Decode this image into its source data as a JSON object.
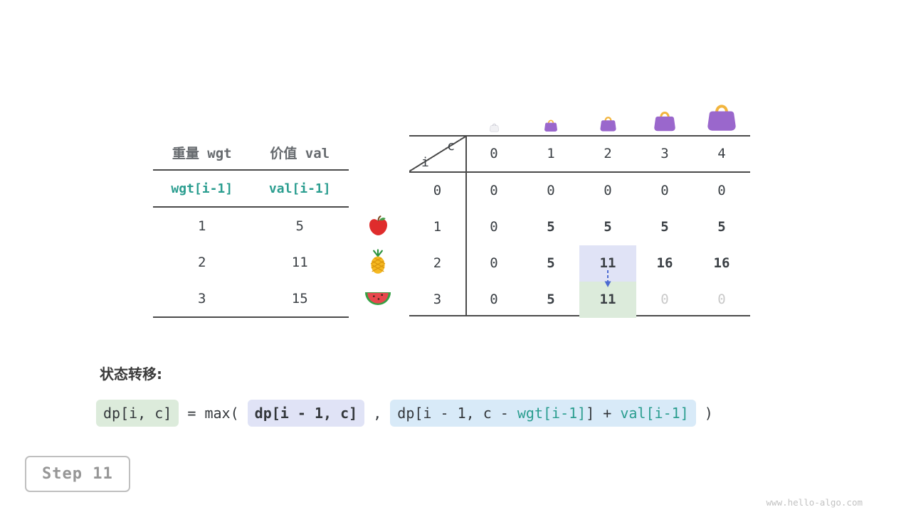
{
  "page": {
    "watermark": "www.hello-algo.com"
  },
  "step": {
    "label": "Step 11"
  },
  "items_table": {
    "headers": [
      "重量 wgt",
      "价值 val"
    ],
    "subheader": [
      "wgt[i-1]",
      "val[i-1]"
    ],
    "rows": [
      {
        "wgt": "1",
        "val": "5",
        "icon": "apple-icon"
      },
      {
        "wgt": "2",
        "val": "11",
        "icon": "pineapple-icon"
      },
      {
        "wgt": "3",
        "val": "15",
        "icon": "watermelon-icon"
      }
    ]
  },
  "dp_table": {
    "corner": {
      "row_var": "i",
      "col_var": "c"
    },
    "col_headers": [
      "0",
      "1",
      "2",
      "3",
      "4"
    ],
    "bags": [
      {
        "icon": "bag-icon",
        "variant": "empty",
        "capacity": "0"
      },
      {
        "icon": "bag-icon",
        "variant": "small",
        "capacity": "1"
      },
      {
        "icon": "bag-icon",
        "variant": "medium",
        "capacity": "2"
      },
      {
        "icon": "bag-icon",
        "variant": "large",
        "capacity": "3"
      },
      {
        "icon": "bag-icon",
        "variant": "xlarge",
        "capacity": "4"
      }
    ],
    "rows": [
      {
        "label": "0",
        "cells": [
          {
            "v": "0"
          },
          {
            "v": "0"
          },
          {
            "v": "0"
          },
          {
            "v": "0"
          },
          {
            "v": "0"
          }
        ]
      },
      {
        "label": "1",
        "cells": [
          {
            "v": "0"
          },
          {
            "v": "5",
            "bold": true
          },
          {
            "v": "5",
            "bold": true
          },
          {
            "v": "5",
            "bold": true
          },
          {
            "v": "5",
            "bold": true
          }
        ]
      },
      {
        "label": "2",
        "cells": [
          {
            "v": "0"
          },
          {
            "v": "5",
            "bold": true
          },
          {
            "v": "11",
            "bold": true,
            "hl": "lavender"
          },
          {
            "v": "16",
            "bold": true
          },
          {
            "v": "16",
            "bold": true
          }
        ]
      },
      {
        "label": "3",
        "cells": [
          {
            "v": "0"
          },
          {
            "v": "5",
            "bold": true
          },
          {
            "v": "11",
            "bold": true,
            "hl": "green"
          },
          {
            "v": "0",
            "muted": true
          },
          {
            "v": "0",
            "muted": true
          }
        ]
      }
    ],
    "arrow": {
      "from": {
        "row": 2,
        "col": 2
      },
      "to": {
        "row": 3,
        "col": 2
      },
      "color": "#4c6ad1"
    }
  },
  "formula": {
    "label": "状态转移:",
    "parts": [
      {
        "bg": "green",
        "segments": [
          {
            "text": "dp[i, c]"
          }
        ]
      },
      {
        "segments": [
          {
            "text": " = max( "
          }
        ]
      },
      {
        "bg": "lavender",
        "bold": true,
        "segments": [
          {
            "text": "dp[i - 1, c]"
          }
        ]
      },
      {
        "segments": [
          {
            "text": " , "
          }
        ]
      },
      {
        "bg": "blue",
        "segments": [
          {
            "text": "dp[i - 1, c - "
          },
          {
            "text": "wgt[i-1]",
            "color": "teal"
          },
          {
            "text": "] + "
          },
          {
            "text": "val[i-1]",
            "color": "teal"
          }
        ]
      },
      {
        "segments": [
          {
            "text": " )"
          }
        ]
      }
    ]
  },
  "colors": {
    "teal": "#2a9d8f",
    "highlight_green": "#dcebdb",
    "highlight_lavender": "#e0e3f6",
    "formula_blue": "#d8eaf8",
    "muted": "#c9c9c9"
  }
}
